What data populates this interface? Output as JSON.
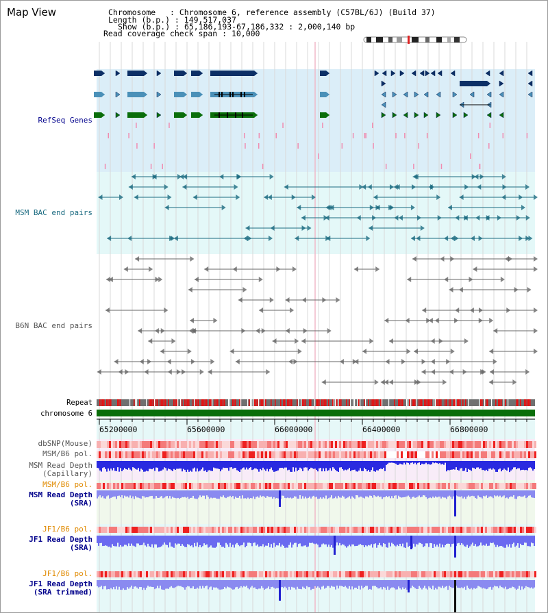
{
  "title": "Map View",
  "info": {
    "chromosome_label": "Chromosome   : ",
    "chromosome_value": "Chromosome 6, reference assembly (C57BL/6J) (Build 37)",
    "length_label": "Length (b.p.) : ",
    "length_value": "149,517,037",
    "show_label": "Show (b.p.) : ",
    "show_value": "65,186,193-67,186,332 : 2,000,140 bp",
    "span_label": "Read coverage check span : ",
    "span_value": "10,000"
  },
  "tracks": {
    "refseq": "RefSeq Genes",
    "msm_bac": "MSM BAC end pairs",
    "b6n_bac": "B6N BAC end pairs",
    "repeat": "Repeat",
    "chromosome": "chromosome 6",
    "dbsnp": "dbSNP(Mouse)",
    "msm_b6_pol_1": "MSM/B6 pol.",
    "msm_depth_cap_1": "MSM Read Depth",
    "msm_depth_cap_2": "(Capillary)",
    "msm_b6_pol_2": "MSM/B6 pol.",
    "msm_depth_sra_1": "MSM Read Depth",
    "msm_depth_sra_2": "(SRA)",
    "jf1_b6_pol_1": "JF1/B6 pol.",
    "jf1_depth_sra_1": "JF1 Read Depth",
    "jf1_depth_sra_2": "(SRA)",
    "jf1_b6_pol_2": "JF1/B6 pol.",
    "jf1_depth_trim_1": "JF1 Read Depth",
    "jf1_depth_trim_2": "(SRA trimmed)"
  },
  "axis": {
    "ticks": [
      "65200000",
      "65600000",
      "66000000",
      "66400000",
      "66800000"
    ]
  },
  "colors": {
    "refseq_bg": "#dbeef8",
    "msm_bac_bg": "#e4f8f8",
    "msm_depth_bg": "#f8ecf8",
    "green_bg": "#f0f8ec",
    "cyan_bg": "#e6f8f8",
    "navy": "#0c2f66",
    "steel": "#4a90b8",
    "green": "#0a6e0a",
    "teal": "#1a6a80",
    "gray": "#666666",
    "label_blue": "#00008b",
    "label_teal": "#1a6a80",
    "label_gray": "#555555",
    "label_orange": "#e08a00",
    "chrom_green": "#0a6e0a"
  }
}
